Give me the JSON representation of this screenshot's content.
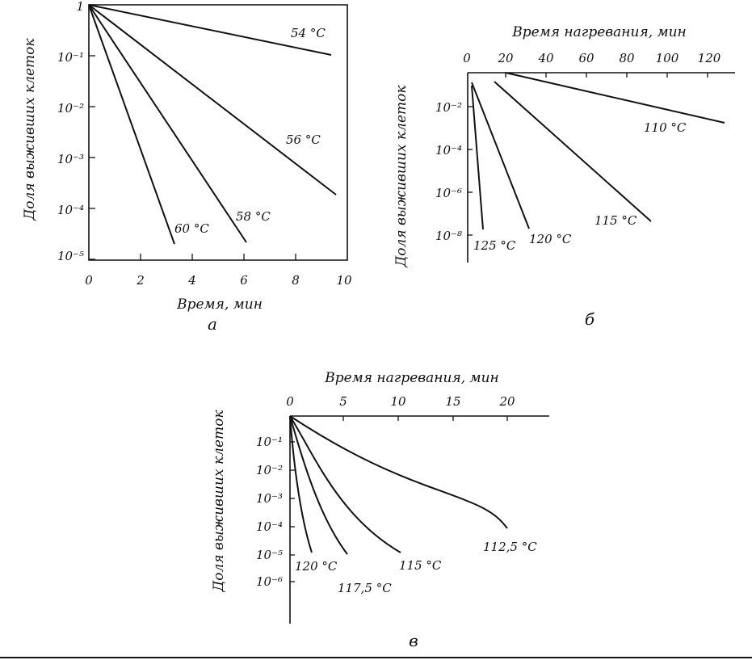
{
  "chart_data": [
    {
      "id": "a",
      "type": "line",
      "caption": "а",
      "xlabel": "Время, мин",
      "ylabel": "Доля выживших клеток",
      "x_ticks": [
        "0",
        "2",
        "4",
        "6",
        "8",
        "10"
      ],
      "y_ticks": [
        "1",
        "10⁻¹",
        "10⁻²",
        "10⁻³",
        "10⁻⁴",
        "10⁻⁵"
      ],
      "xlim": [
        0,
        10
      ],
      "ylim_log10": [
        -5,
        0
      ],
      "series": [
        {
          "name": "54 °C",
          "x": [
            0,
            9.3
          ],
          "y": [
            1,
            0.1
          ]
        },
        {
          "name": "56 °C",
          "x": [
            0,
            9.5
          ],
          "y": [
            1,
            0.00015
          ]
        },
        {
          "name": "58 °C",
          "x": [
            0,
            5.9
          ],
          "y": [
            1,
            1e-05
          ]
        },
        {
          "name": "60 °C",
          "x": [
            0,
            3.2
          ],
          "y": [
            1,
            1e-05
          ]
        }
      ]
    },
    {
      "id": "b",
      "type": "line",
      "caption": "б",
      "xlabel": "Время нагревания, мин",
      "ylabel": "Доля выживших клеток",
      "x_ticks": [
        "0",
        "20",
        "40",
        "60",
        "80",
        "100",
        "120"
      ],
      "y_ticks": [
        "10⁻²",
        "10⁻⁴",
        "10⁻⁶",
        "10⁻⁸"
      ],
      "xlim": [
        0,
        130
      ],
      "ylim_log10": [
        -9,
        0
      ],
      "series": [
        {
          "name": "110 °C",
          "x": [
            10,
            126
          ],
          "y": [
            1,
            0.005
          ]
        },
        {
          "name": "115 °C",
          "x": [
            7,
            90
          ],
          "y": [
            0.3,
            4e-08
          ]
        },
        {
          "name": "120 °C",
          "x": [
            1,
            16
          ],
          "y": [
            0.1,
            5e-09
          ]
        },
        {
          "name": "125 °C",
          "x": [
            1,
            4
          ],
          "y": [
            0.05,
            5e-09
          ]
        }
      ]
    },
    {
      "id": "c",
      "type": "line",
      "caption": "в",
      "xlabel": "Время нагревания, мин",
      "ylabel": "Доля выживших клеток",
      "x_ticks": [
        "0",
        "5",
        "10",
        "15",
        "20"
      ],
      "y_ticks": [
        "10⁻¹",
        "10⁻²",
        "10⁻³",
        "10⁻⁴",
        "10⁻⁵",
        "10⁻⁶"
      ],
      "xlim": [
        0,
        22
      ],
      "ylim_log10": [
        -7,
        0
      ],
      "series": [
        {
          "name": "112,5 °C",
          "x": [
            0,
            3,
            6,
            10,
            14,
            18,
            20
          ],
          "y": [
            1,
            0.25,
            0.05,
            0.006,
            0.001,
            0.0003,
            0.0001
          ]
        },
        {
          "name": "115 °C",
          "x": [
            0,
            1.5,
            3,
            5,
            7,
            9.5
          ],
          "y": [
            1,
            0.1,
            0.01,
            0.0007,
            6e-05,
            8e-06
          ]
        },
        {
          "name": "117,5 °C",
          "x": [
            0,
            1,
            2,
            3.5,
            5
          ],
          "y": [
            1,
            0.1,
            0.005,
            0.0001,
            8e-06
          ]
        },
        {
          "name": "120 °C",
          "x": [
            0,
            0.5,
            1,
            2
          ],
          "y": [
            1,
            0.02,
            0.0001,
            4e-06
          ]
        }
      ]
    }
  ]
}
